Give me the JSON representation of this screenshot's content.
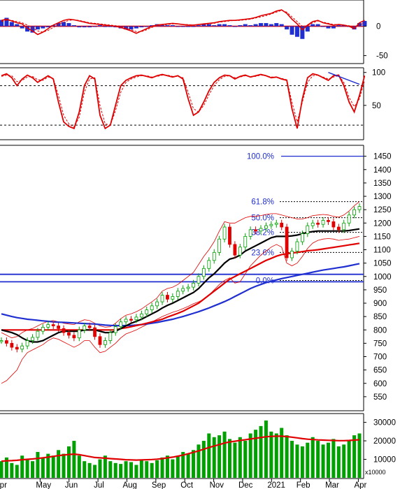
{
  "chart_data": [
    {
      "type": "bar",
      "panel": "macd",
      "ylim": [
        -60,
        40
      ],
      "ticks": [
        0,
        -50
      ],
      "colors": {
        "hist_pos": "#1f2fd0",
        "hist_neg": "#1f2fd0",
        "line": "#e00000",
        "signal": "#e00000"
      },
      "series": [
        {
          "values": [
            10,
            12,
            9,
            6,
            4,
            -3,
            -8,
            -14,
            -10,
            -4,
            2,
            6,
            10,
            12,
            11,
            9,
            7,
            5,
            4,
            3,
            2,
            1,
            0,
            -2,
            -5,
            -8,
            -12,
            -8,
            -4,
            0,
            2,
            3,
            4,
            5,
            4,
            3,
            2,
            2,
            3,
            4,
            5,
            6,
            8,
            9,
            10,
            10,
            11,
            12,
            13,
            15,
            18,
            20,
            22,
            26,
            28,
            22,
            12,
            4,
            -6,
            2,
            8,
            10,
            6,
            4,
            2,
            3,
            2,
            0,
            -4,
            6,
            10
          ]
        },
        {
          "values": [
            8,
            10,
            10,
            8,
            6,
            2,
            -3,
            -8,
            -10,
            -7,
            -2,
            3,
            7,
            10,
            11,
            10,
            8,
            6,
            5,
            4,
            3,
            2,
            1,
            0,
            -3,
            -6,
            -9,
            -9,
            -6,
            -2,
            1,
            2,
            3,
            4,
            4,
            3,
            3,
            2,
            3,
            3,
            4,
            5,
            7,
            8,
            9,
            10,
            10,
            11,
            12,
            14,
            16,
            18,
            21,
            24,
            27,
            24,
            16,
            8,
            0,
            1,
            6,
            9,
            7,
            5,
            3,
            3,
            2,
            1,
            -2,
            2,
            6
          ]
        }
      ],
      "histogram": [
        6,
        8,
        4,
        2,
        -2,
        -5,
        -6,
        -3,
        -2,
        -1,
        1,
        3,
        4,
        3,
        1,
        -1,
        -1,
        -1,
        0,
        1,
        0,
        0,
        -1,
        -2,
        -3,
        -3,
        -2,
        -1,
        0,
        1,
        2,
        1,
        1,
        1,
        0,
        0,
        0,
        0,
        1,
        2,
        2,
        1,
        2,
        2,
        1,
        0,
        1,
        2,
        1,
        2,
        3,
        3,
        2,
        3,
        2,
        -3,
        -8,
        -10,
        -12,
        -5,
        2,
        2,
        0,
        -2,
        -2,
        1,
        1,
        0,
        -3,
        3,
        5
      ]
    },
    {
      "type": "line",
      "panel": "stochastic",
      "ylim": [
        0,
        105
      ],
      "ticks": [
        100,
        50
      ],
      "reference_lines": [
        80,
        20
      ],
      "series": [
        {
          "values": [
            95,
            98,
            92,
            80,
            90,
            96,
            92,
            85,
            90,
            95,
            90,
            55,
            25,
            18,
            15,
            40,
            80,
            95,
            90,
            35,
            15,
            20,
            50,
            80,
            88,
            92,
            95,
            96,
            94,
            92,
            95,
            97,
            95,
            93,
            95,
            90,
            60,
            35,
            40,
            55,
            72,
            85,
            92,
            96,
            95,
            90,
            94,
            96,
            93,
            95,
            97,
            95,
            92,
            93,
            90,
            88,
            45,
            15,
            60,
            92,
            98,
            96,
            92,
            88,
            95,
            96,
            80,
            55,
            40,
            65,
            95
          ]
        },
        {
          "values": [
            94,
            96,
            95,
            86,
            88,
            93,
            94,
            89,
            88,
            93,
            91,
            65,
            35,
            22,
            17,
            32,
            70,
            90,
            92,
            50,
            22,
            20,
            42,
            70,
            85,
            90,
            93,
            95,
            95,
            93,
            94,
            96,
            96,
            94,
            94,
            92,
            70,
            45,
            40,
            50,
            66,
            80,
            89,
            94,
            95,
            92,
            93,
            95,
            94,
            94,
            96,
            95,
            93,
            93,
            91,
            89,
            55,
            25,
            55,
            85,
            95,
            96,
            93,
            90,
            93,
            95,
            85,
            62,
            48,
            60,
            88
          ]
        }
      ],
      "trendline": {
        "from": {
          "index": 63,
          "value": 100
        },
        "to": {
          "index": 69,
          "value": 82
        },
        "color": "#1f2fd0"
      }
    },
    {
      "type": "candlestick",
      "panel": "price",
      "ylim": [
        500,
        1470
      ],
      "ticks": [
        1450,
        1400,
        1350,
        1300,
        1250,
        1200,
        1150,
        1100,
        1050,
        1000,
        950,
        900,
        850,
        800,
        750,
        700,
        650,
        600,
        550
      ],
      "fibonacci": [
        {
          "label": "100.0%",
          "value": 1450
        },
        {
          "label": "61.8%",
          "value": 1280
        },
        {
          "label": "50.0%",
          "value": 1220
        },
        {
          "label": "38.2%",
          "value": 1165
        },
        {
          "label": "23.6%",
          "value": 1090
        },
        {
          "label": "0.0%",
          "value": 985
        }
      ],
      "horizontal_lines": [
        1008,
        980
      ],
      "close": [
        760,
        750,
        735,
        728,
        740,
        760,
        772,
        795,
        810,
        820,
        815,
        805,
        790,
        780,
        770,
        800,
        815,
        808,
        775,
        745,
        760,
        790,
        812,
        830,
        840,
        838,
        848,
        860,
        875,
        890,
        905,
        930,
        915,
        925,
        945,
        955,
        960,
        975,
        1000,
        1030,
        1060,
        1090,
        1140,
        1185,
        1120,
        1080,
        1110,
        1150,
        1175,
        1170,
        1180,
        1190,
        1195,
        1200,
        1185,
        1070,
        1095,
        1130,
        1160,
        1190,
        1200,
        1195,
        1210,
        1205,
        1185,
        1175,
        1200,
        1230,
        1250,
        1262
      ],
      "ma_short": [
        800,
        795,
        790,
        782,
        770,
        760,
        755,
        755,
        760,
        770,
        780,
        790,
        795,
        795,
        795,
        795,
        800,
        800,
        800,
        795,
        790,
        790,
        795,
        805,
        815,
        825,
        832,
        840,
        850,
        860,
        870,
        882,
        892,
        900,
        910,
        920,
        930,
        940,
        955,
        975,
        995,
        1010,
        1030,
        1050,
        1065,
        1070,
        1080,
        1095,
        1105,
        1115,
        1125,
        1135,
        1145,
        1150,
        1150,
        1150,
        1152,
        1155,
        1160,
        1165,
        1168,
        1170,
        1170,
        1170,
        1170,
        1170,
        1170,
        1172,
        1175,
        1178
      ],
      "ma_mid": [
        800,
        800,
        800,
        800,
        800,
        800,
        800,
        800,
        800,
        800,
        800,
        800,
        800,
        800,
        800,
        800,
        800,
        800,
        800,
        800,
        800,
        800,
        800,
        805,
        808,
        812,
        816,
        820,
        825,
        830,
        835,
        840,
        848,
        855,
        862,
        870,
        880,
        890,
        900,
        915,
        930,
        945,
        960,
        975,
        990,
        1000,
        1010,
        1020,
        1030,
        1040,
        1050,
        1060,
        1068,
        1076,
        1082,
        1085,
        1088,
        1090,
        1093,
        1096,
        1098,
        1100,
        1103,
        1106,
        1109,
        1112,
        1115,
        1118,
        1121,
        1124
      ],
      "ma_long": [
        860,
        855,
        850,
        846,
        843,
        840,
        838,
        836,
        834,
        832,
        830,
        829,
        828,
        827,
        826,
        825,
        824,
        823,
        822,
        820,
        818,
        817,
        816,
        816,
        816,
        817,
        818,
        820,
        822,
        825,
        828,
        832,
        836,
        840,
        845,
        850,
        856,
        862,
        868,
        875,
        882,
        890,
        898,
        906,
        915,
        925,
        935,
        945,
        955,
        963,
        970,
        977,
        982,
        987,
        992,
        996,
        1000,
        1004,
        1008,
        1012,
        1016,
        1020,
        1024,
        1027,
        1030,
        1033,
        1036,
        1040,
        1044,
        1048
      ],
      "bb_upper": [
        790,
        780,
        770,
        775,
        790,
        800,
        805,
        815,
        825,
        832,
        835,
        830,
        825,
        822,
        820,
        830,
        838,
        835,
        825,
        815,
        810,
        812,
        825,
        842,
        855,
        860,
        868,
        878,
        892,
        905,
        920,
        945,
        955,
        960,
        970,
        985,
        1000,
        1015,
        1045,
        1075,
        1100,
        1130,
        1170,
        1205,
        1200,
        1200,
        1210,
        1220,
        1225,
        1225,
        1228,
        1232,
        1235,
        1235,
        1230,
        1225,
        1220,
        1215,
        1215,
        1220,
        1228,
        1230,
        1232,
        1230,
        1225,
        1222,
        1230,
        1245,
        1265,
        1280
      ],
      "bb_lower": [
        600,
        610,
        630,
        650,
        690,
        715,
        725,
        735,
        745,
        760,
        770,
        765,
        755,
        745,
        735,
        745,
        760,
        760,
        735,
        715,
        720,
        735,
        750,
        770,
        785,
        792,
        800,
        810,
        820,
        830,
        840,
        850,
        858,
        866,
        872,
        880,
        888,
        898,
        905,
        915,
        930,
        950,
        970,
        985,
        995,
        975,
        980,
        1010,
        1040,
        1060,
        1080,
        1095,
        1110,
        1120,
        1110,
        1050,
        1040,
        1050,
        1075,
        1105,
        1125,
        1135,
        1140,
        1142,
        1140,
        1135,
        1138,
        1140,
        1145,
        1150
      ],
      "colors": {
        "up": "#00a000",
        "down": "#e00000",
        "ma_short": "#000000",
        "ma_mid": "#e00000",
        "ma_long": "#1f2fd0",
        "band": "#e00000",
        "fib": "#1f2fd0"
      }
    },
    {
      "type": "bar",
      "panel": "volume",
      "ylim": [
        0,
        34000
      ],
      "ticks": [
        30000,
        20000,
        10000
      ],
      "unit_label": "x10000",
      "values": [
        9000,
        11000,
        8000,
        7000,
        12000,
        10000,
        9000,
        14000,
        11000,
        13000,
        12000,
        15000,
        13000,
        17000,
        20000,
        12000,
        9000,
        8000,
        7000,
        10000,
        12000,
        9000,
        8000,
        7500,
        9000,
        8500,
        7000,
        10000,
        9000,
        8000,
        9500,
        11000,
        12000,
        10000,
        12000,
        14000,
        13000,
        15000,
        18000,
        20000,
        24000,
        22000,
        23000,
        25000,
        21000,
        19000,
        22000,
        20000,
        24000,
        26000,
        28000,
        31000,
        25000,
        24000,
        27000,
        23000,
        20000,
        18000,
        17000,
        19000,
        22000,
        20000,
        18000,
        19000,
        21000,
        17000,
        18000,
        20000,
        23000,
        24000
      ],
      "ma": [
        9000,
        9200,
        9300,
        9500,
        9800,
        10000,
        10200,
        10500,
        10800,
        11200,
        11600,
        12000,
        12300,
        12600,
        12800,
        12500,
        12000,
        11500,
        11000,
        10800,
        10600,
        10400,
        10200,
        10000,
        9800,
        9700,
        9600,
        9700,
        9800,
        9900,
        10100,
        10400,
        10800,
        11200,
        11700,
        12300,
        13000,
        13800,
        14600,
        15500,
        16400,
        17200,
        18000,
        18800,
        19400,
        19800,
        20200,
        20600,
        21000,
        21400,
        21800,
        22200,
        22400,
        22500,
        22500,
        22300,
        22000,
        21600,
        21200,
        20900,
        20700,
        20500,
        20400,
        20300,
        20200,
        20100,
        20100,
        20200,
        20400,
        20600
      ],
      "colors": {
        "bar": "#00a000",
        "ma": "#e00000"
      }
    }
  ],
  "x_axis": {
    "labels": [
      "Apr",
      "May",
      "Jun",
      "Jul",
      "Aug",
      "Sep",
      "Oct",
      "Nov",
      "Dec",
      "2021",
      "Feb",
      "Mar",
      "Apr"
    ]
  }
}
